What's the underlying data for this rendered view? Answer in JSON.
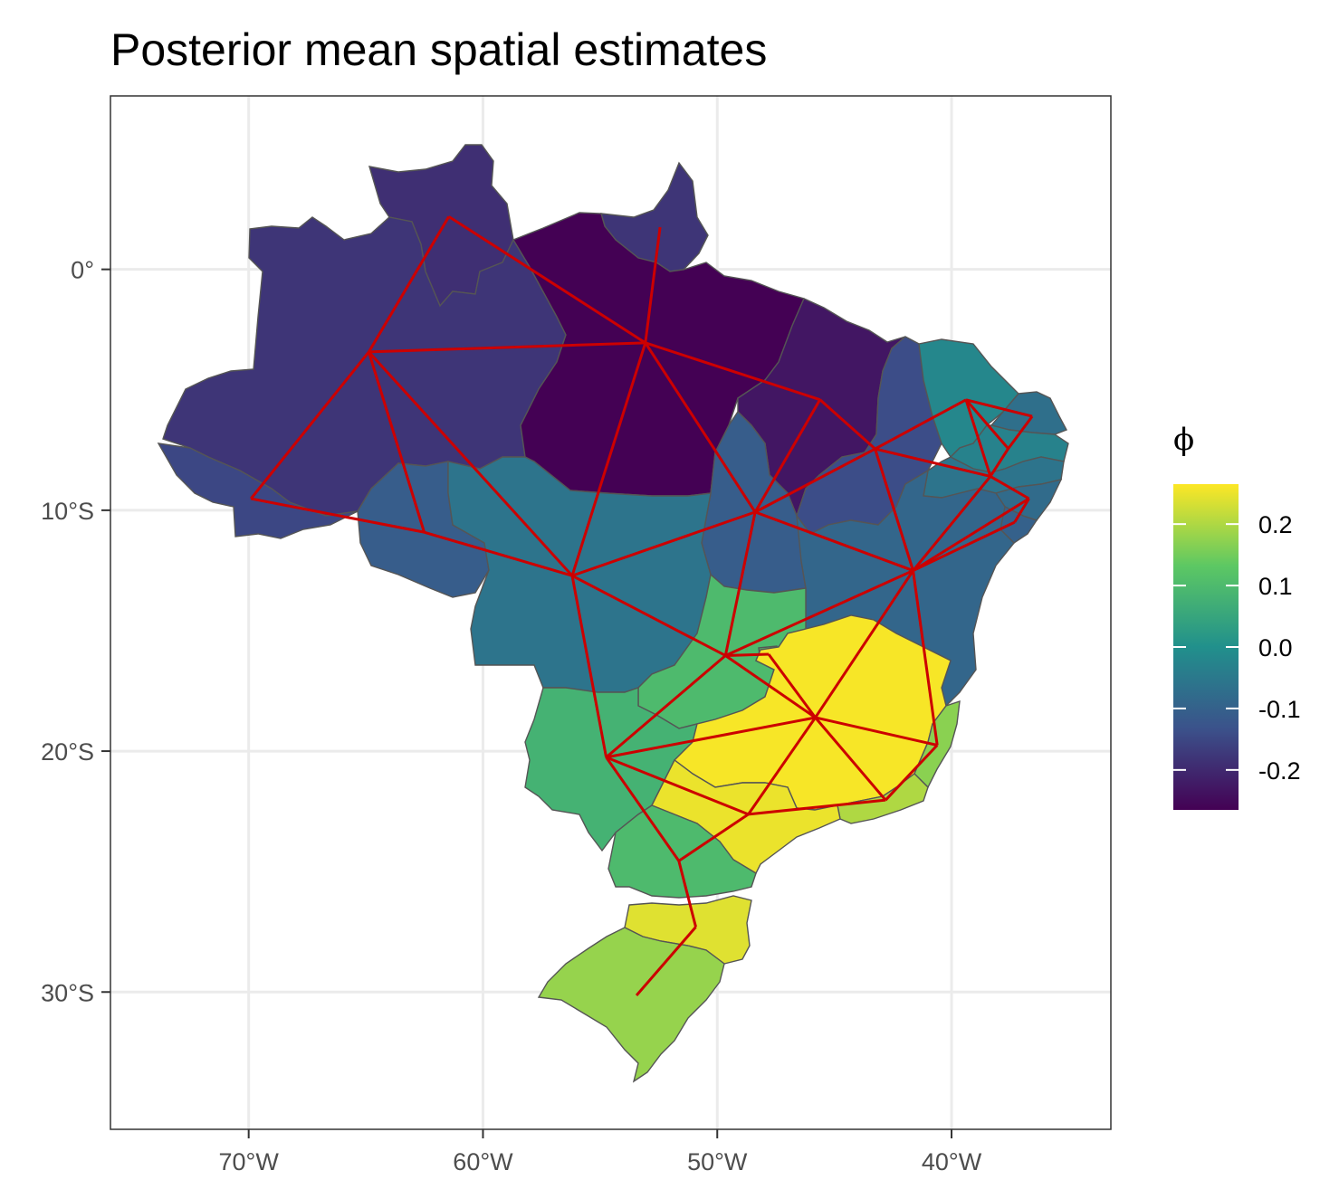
{
  "title": "Posterior mean spatial estimates",
  "axes": {
    "x_ticks": [
      {
        "label": "70°W",
        "lon": -70
      },
      {
        "label": "60°W",
        "lon": -60
      },
      {
        "label": "50°W",
        "lon": -50
      },
      {
        "label": "40°W",
        "lon": -40
      }
    ],
    "y_ticks": [
      {
        "label": "0°",
        "lat": 0
      },
      {
        "label": "10°S",
        "lat": -10
      },
      {
        "label": "20°S",
        "lat": -20
      },
      {
        "label": "30°S",
        "lat": -30
      }
    ],
    "xlim": [
      -75.9,
      -33.2
    ],
    "ylim": [
      -35.7,
      7.2
    ]
  },
  "legend": {
    "title": "ϕ",
    "ticks": [
      {
        "label": "0.2",
        "value": 0.2
      },
      {
        "label": "0.1",
        "value": 0.1
      },
      {
        "label": "0.0",
        "value": 0.0
      },
      {
        "label": "-0.1",
        "value": -0.1
      },
      {
        "label": "-0.2",
        "value": -0.2
      }
    ],
    "range": [
      -0.265,
      0.265
    ],
    "palette": [
      "#440154",
      "#3b528b",
      "#21908c",
      "#5dc863",
      "#fde725"
    ]
  },
  "colors": {
    "edges": "#cc0000",
    "borders": "#555555",
    "grid": "#ebebeb",
    "panel_border": "#333333"
  },
  "regions": [
    {
      "code": "RR",
      "phi": -0.19
    },
    {
      "code": "AP",
      "phi": -0.18
    },
    {
      "code": "AM",
      "phi": -0.18
    },
    {
      "code": "AC",
      "phi": -0.15
    },
    {
      "code": "PA",
      "phi": -0.265
    },
    {
      "code": "MA",
      "phi": -0.23
    },
    {
      "code": "PI",
      "phi": -0.14
    },
    {
      "code": "CE",
      "phi": -0.02
    },
    {
      "code": "RN",
      "phi": -0.07
    },
    {
      "code": "PB",
      "phi": -0.03
    },
    {
      "code": "PE",
      "phi": -0.06
    },
    {
      "code": "AL",
      "phi": -0.08
    },
    {
      "code": "SE",
      "phi": -0.1
    },
    {
      "code": "RO",
      "phi": -0.11
    },
    {
      "code": "TO",
      "phi": -0.11
    },
    {
      "code": "MT",
      "phi": -0.06
    },
    {
      "code": "BA",
      "phi": -0.09
    },
    {
      "code": "GO",
      "phi": 0.1
    },
    {
      "code": "DF",
      "phi": 0.12
    },
    {
      "code": "MS",
      "phi": 0.08
    },
    {
      "code": "MG",
      "phi": 0.26
    },
    {
      "code": "ES",
      "phi": 0.17
    },
    {
      "code": "RJ",
      "phi": 0.2
    },
    {
      "code": "SP",
      "phi": 0.25
    },
    {
      "code": "PR",
      "phi": 0.1
    },
    {
      "code": "SC",
      "phi": 0.24
    },
    {
      "code": "RS",
      "phi": 0.18
    }
  ],
  "edges": [
    [
      "RR",
      "AM"
    ],
    [
      "RR",
      "PA"
    ],
    [
      "AP",
      "PA"
    ],
    [
      "AM",
      "AC"
    ],
    [
      "AM",
      "RO"
    ],
    [
      "AM",
      "PA"
    ],
    [
      "AM",
      "MT"
    ],
    [
      "AC",
      "RO"
    ],
    [
      "RO",
      "MT"
    ],
    [
      "PA",
      "MA"
    ],
    [
      "PA",
      "TO"
    ],
    [
      "PA",
      "MT"
    ],
    [
      "MA",
      "TO"
    ],
    [
      "MA",
      "PI"
    ],
    [
      "PI",
      "TO"
    ],
    [
      "PI",
      "BA"
    ],
    [
      "PI",
      "CE"
    ],
    [
      "PI",
      "PE"
    ],
    [
      "CE",
      "RN"
    ],
    [
      "CE",
      "PB"
    ],
    [
      "CE",
      "PE"
    ],
    [
      "RN",
      "PB"
    ],
    [
      "PB",
      "PE"
    ],
    [
      "PE",
      "AL"
    ],
    [
      "PE",
      "BA"
    ],
    [
      "AL",
      "SE"
    ],
    [
      "AL",
      "BA"
    ],
    [
      "SE",
      "BA"
    ],
    [
      "TO",
      "BA"
    ],
    [
      "TO",
      "GO"
    ],
    [
      "TO",
      "MT"
    ],
    [
      "MT",
      "GO"
    ],
    [
      "MT",
      "MS"
    ],
    [
      "BA",
      "GO"
    ],
    [
      "BA",
      "MG"
    ],
    [
      "BA",
      "ES"
    ],
    [
      "GO",
      "DF"
    ],
    [
      "GO",
      "MG"
    ],
    [
      "GO",
      "MS"
    ],
    [
      "DF",
      "MG"
    ],
    [
      "MS",
      "MG"
    ],
    [
      "MS",
      "SP"
    ],
    [
      "MS",
      "PR"
    ],
    [
      "MG",
      "ES"
    ],
    [
      "MG",
      "RJ"
    ],
    [
      "MG",
      "SP"
    ],
    [
      "ES",
      "RJ"
    ],
    [
      "RJ",
      "SP"
    ],
    [
      "SP",
      "PR"
    ],
    [
      "PR",
      "SC"
    ],
    [
      "SC",
      "RS"
    ]
  ]
}
